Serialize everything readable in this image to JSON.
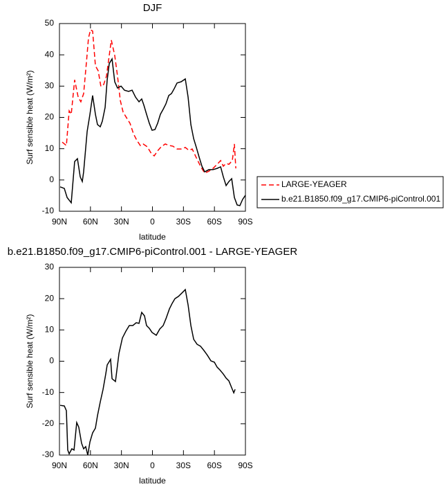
{
  "chart_data": [
    {
      "type": "line",
      "title": "DJF",
      "x_label": "latitude",
      "y_label": "Surf sensible heat (W/m²)",
      "xlim": [
        90,
        -90
      ],
      "ylim": [
        -10,
        50
      ],
      "xticks": [
        {
          "value": 90,
          "label": "90N"
        },
        {
          "value": 60,
          "label": "60N"
        },
        {
          "value": 30,
          "label": "30N"
        },
        0,
        {
          "value": -30,
          "label": "30S"
        },
        {
          "value": -60,
          "label": "60S"
        },
        {
          "value": -90,
          "label": "90S"
        }
      ],
      "yticks": [
        -10,
        0,
        10,
        20,
        30,
        40,
        50
      ],
      "legend": "outside-right",
      "series": [
        {
          "name": "LARGE-YEAGER",
          "color": "#ff0000",
          "dash": "dashed",
          "x": [
            87.3,
            83.3,
            80.6,
            78.6,
            75.3,
            71.9,
            69.3,
            66.6,
            63.9,
            61.9,
            59.9,
            57.9,
            55.2,
            52.5,
            49.9,
            47.2,
            44.5,
            39.8,
            36.5,
            33.8,
            31.1,
            28.4,
            25.1,
            21.7,
            18.4,
            15,
            11.7,
            9,
            5,
            1,
            -1.7,
            -5,
            -8.4,
            -12.4,
            -16.4,
            -19.8,
            -23.8,
            -27.8,
            -31.8,
            -35.2,
            -38.5,
            -42.5,
            -46.5,
            -50.6,
            -54.6,
            -58.6,
            -62.6,
            -66,
            -68.6,
            -71.3,
            -74,
            -77.3,
            -79.3,
            -80.7
          ],
          "values": [
            12.1,
            11,
            22.1,
            21,
            32,
            26.5,
            25,
            27.6,
            37.6,
            45.4,
            48,
            47.6,
            36.5,
            34.9,
            29.9,
            30.5,
            33.2,
            44.7,
            39.8,
            33.2,
            25.4,
            21.7,
            19.9,
            18.1,
            14.8,
            12.6,
            11,
            11.5,
            10.6,
            8.4,
            7.7,
            9.3,
            10.6,
            11.5,
            11,
            10.8,
            9.9,
            9.9,
            10.4,
            9.5,
            9.9,
            7.1,
            4.4,
            2.2,
            2.8,
            3.7,
            5,
            6.2,
            4.4,
            5.3,
            5,
            6.2,
            11.5,
            3.7
          ]
        },
        {
          "name": "b.e21.B1850.f09_g17.CMIP6-piControl.001",
          "color": "#000000",
          "dash": "solid",
          "x": [
            89.3,
            85.3,
            82.6,
            78.6,
            75.3,
            72.6,
            69.9,
            67.9,
            66.6,
            63.2,
            60.5,
            57.9,
            55.2,
            53.2,
            50.5,
            48.5,
            45.8,
            43.8,
            41.8,
            39.1,
            36.5,
            33.8,
            30.4,
            27.1,
            23.1,
            19.7,
            16.4,
            13,
            10.4,
            8.3,
            5.7,
            3,
            0.4,
            -2.4,
            -5,
            -7.7,
            -10.4,
            -13,
            -15.8,
            -18.4,
            -21.1,
            -23.8,
            -27.8,
            -31.8,
            -34.5,
            -37.2,
            -39.9,
            -42.5,
            -45.2,
            -47.9,
            -50.6,
            -54.6,
            -58.6,
            -62.6,
            -66,
            -68.6,
            -71.3,
            -74,
            -76.7,
            -79.3,
            -82,
            -84.6,
            -87.3,
            -90
          ],
          "values": [
            -2.2,
            -2.7,
            -5.6,
            -7.3,
            5.9,
            6.8,
            1,
            -0.5,
            2.6,
            15.5,
            21,
            27,
            21,
            17.7,
            17,
            18.8,
            23.2,
            32,
            37.2,
            38.7,
            31.4,
            29.4,
            30,
            28.7,
            28.3,
            28.7,
            26.5,
            25,
            25.9,
            23.9,
            21,
            18.1,
            15.9,
            16.1,
            18.1,
            21,
            22.6,
            24.3,
            27,
            27.6,
            29.2,
            31,
            31.4,
            32.3,
            26.5,
            17.7,
            13.2,
            10.4,
            7.3,
            4.4,
            2.6,
            3.3,
            3.3,
            3.7,
            4.2,
            1,
            -1.8,
            -0.5,
            0.4,
            -5.6,
            -8,
            -8.2,
            -6.2,
            -4.9
          ]
        }
      ]
    },
    {
      "type": "line",
      "title": "b.e21.B1850.f09_g17.CMIP6-piControl.001 - LARGE-YEAGER",
      "x_label": "latitude",
      "y_label": "Surf sensible heat (W/m²)",
      "xlim": [
        90,
        -90
      ],
      "ylim": [
        -30,
        30
      ],
      "xticks": [
        {
          "value": 90,
          "label": "90N"
        },
        {
          "value": 60,
          "label": "60N"
        },
        {
          "value": 30,
          "label": "30N"
        },
        0,
        {
          "value": -30,
          "label": "30S"
        },
        {
          "value": -60,
          "label": "60S"
        },
        {
          "value": -90,
          "label": "90S"
        }
      ],
      "yticks": [
        -30,
        -20,
        -10,
        0,
        10,
        20,
        30
      ],
      "series": [
        {
          "color": "#000000",
          "dash": "solid",
          "x": [
            89.3,
            85.3,
            83.3,
            82,
            80.6,
            78,
            75.9,
            73.3,
            71.3,
            68.6,
            66.6,
            64.6,
            62.6,
            60.5,
            57.9,
            55.2,
            53.2,
            50.5,
            47.8,
            45.2,
            43.8,
            41.8,
            40.5,
            39.1,
            35.8,
            32.4,
            29.1,
            25.7,
            22.4,
            19,
            15.7,
            13,
            10.4,
            7.7,
            5.7,
            3,
            0.4,
            -3.7,
            -7.1,
            -10.4,
            -13.1,
            -16.4,
            -19.1,
            -21.8,
            -25.1,
            -28.5,
            -31.8,
            -34.5,
            -37.2,
            -39.9,
            -43.2,
            -46.5,
            -49.9,
            -53.2,
            -56.6,
            -59.9,
            -62.6,
            -65.3,
            -68.6,
            -71.3,
            -74,
            -76.7,
            -78.7,
            -80
          ],
          "values": [
            -14.1,
            -14.3,
            -15.8,
            -28.4,
            -29.6,
            -28,
            -28.4,
            -19.6,
            -21.1,
            -26.2,
            -28,
            -27.3,
            -30,
            -25.8,
            -22.9,
            -21.4,
            -17.4,
            -13,
            -9,
            -4.1,
            -1.2,
            -0.1,
            0.6,
            -5.6,
            -6.5,
            2.5,
            7.4,
            9.6,
            11.4,
            11.4,
            12.3,
            12.1,
            15.6,
            14.5,
            11.4,
            10.5,
            9.2,
            8.3,
            10.3,
            11.4,
            13.6,
            16.7,
            18.5,
            20,
            20.7,
            21.8,
            22.9,
            18,
            11.4,
            7,
            5.4,
            4.8,
            3.4,
            1.9,
            0.1,
            -0.3,
            -1.9,
            -2.8,
            -4.1,
            -5.4,
            -6.3,
            -8.5,
            -10.1,
            -9
          ]
        }
      ]
    }
  ]
}
